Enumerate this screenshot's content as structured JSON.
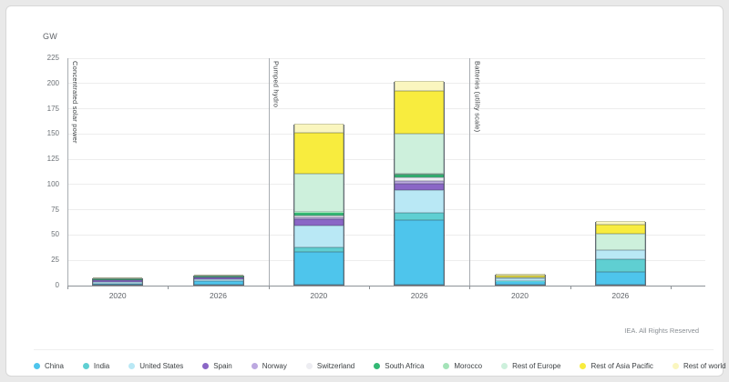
{
  "page": {
    "footer": "IEA. All Rights Reserved"
  },
  "chart_data": {
    "type": "bar",
    "stacked": true,
    "title": "",
    "ylabel": "GW",
    "xlabel": "",
    "ylim": [
      0,
      225
    ],
    "yticks": [
      0,
      25,
      50,
      75,
      100,
      125,
      150,
      175,
      200,
      225
    ],
    "grid": true,
    "legend_position": "bottom",
    "categories": [
      "2020",
      "2026",
      "2020",
      "2026",
      "2020",
      "2026"
    ],
    "groups": [
      {
        "label": "Concentrated solar power",
        "category_indexes": [
          0,
          1
        ]
      },
      {
        "label": "Pumped hydro",
        "category_indexes": [
          2,
          3
        ]
      },
      {
        "label": "Batteries (utility scale)",
        "category_indexes": [
          4,
          5
        ]
      }
    ],
    "series": [
      {
        "name": "China",
        "color": "#4EC5EC",
        "values": [
          0.5,
          3.5,
          32.0,
          64.0,
          3.3,
          13.0
        ]
      },
      {
        "name": "India",
        "color": "#5FCFD2",
        "values": [
          0.0,
          0.0,
          4.8,
          7.5,
          0.2,
          12.5
        ]
      },
      {
        "name": "United States",
        "color": "#B9E8F5",
        "values": [
          1.8,
          1.8,
          21.9,
          21.9,
          2.8,
          9.0
        ]
      },
      {
        "name": "Spain",
        "color": "#8A66C6",
        "values": [
          2.6,
          2.3,
          6.1,
          6.1,
          0.0,
          0.0
        ]
      },
      {
        "name": "Norway",
        "color": "#BCA8E0",
        "values": [
          0.0,
          0.0,
          1.4,
          2.8,
          0.0,
          0.0
        ]
      },
      {
        "name": "Switzerland",
        "color": "#EDEDF2",
        "values": [
          0.0,
          0.0,
          2.6,
          3.5,
          0.0,
          0.0
        ]
      },
      {
        "name": "South Africa",
        "color": "#33B874",
        "values": [
          0.5,
          0.6,
          2.9,
          2.9,
          0.0,
          0.0
        ]
      },
      {
        "name": "Morocco",
        "color": "#A4E3B8",
        "values": [
          0.5,
          0.8,
          0.5,
          0.8,
          0.0,
          0.0
        ]
      },
      {
        "name": "Rest of Europe",
        "color": "#CDF0DC",
        "values": [
          0.0,
          0.0,
          38.0,
          40.0,
          1.2,
          16.0
        ]
      },
      {
        "name": "Rest of Asia Pacific",
        "color": "#F8EC3E",
        "values": [
          0.0,
          0.0,
          40.0,
          42.0,
          1.8,
          9.0
        ]
      },
      {
        "name": "Rest of world",
        "color": "#FAF6BF",
        "values": [
          0.9,
          1.0,
          9.0,
          10.5,
          1.7,
          3.5
        ]
      }
    ]
  }
}
